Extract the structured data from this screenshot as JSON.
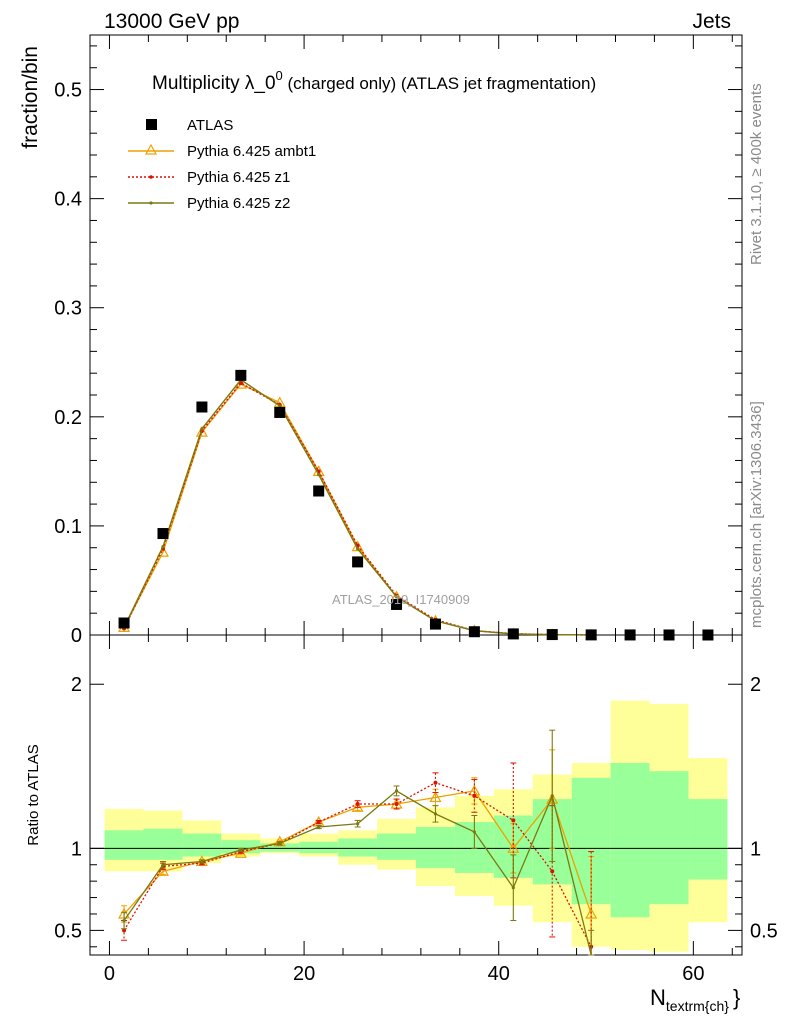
{
  "header": {
    "left": "13000 GeV pp",
    "right": "Jets"
  },
  "title": {
    "main": "Multiplicity λ_0",
    "sup": "0",
    "suffix": " (charged only) (ATLAS jet fragmentation)"
  },
  "side_labels": {
    "rivet": "Rivet 3.1.10, ≥ 400k events",
    "mcplots": "mcplots.cern.ch [arXiv:1306.3436]"
  },
  "watermark": "ATLAS_2019_I1740909",
  "colors": {
    "atlas": "#000000",
    "ambt1": "#f0a000",
    "z1": "#e01000",
    "z2": "#7a7a10",
    "band_yellow": "#ffff99",
    "band_green": "#99ff99"
  },
  "chart_data": [
    {
      "type": "scatter",
      "panel": "main",
      "ylabel": "fraction/bin",
      "xlim": [
        -2,
        65
      ],
      "ylim": [
        0,
        0.55
      ],
      "yticks": [
        0,
        0.1,
        0.2,
        0.3,
        0.4,
        0.5
      ],
      "ytick_labels": [
        "0",
        "0.1",
        "0.2",
        "0.3",
        "0.4",
        "0.5"
      ],
      "legend_position": "top-left",
      "x": [
        1.5,
        5.5,
        9.5,
        13.5,
        17.5,
        21.5,
        25.5,
        29.5,
        33.5,
        37.5,
        41.5,
        45.5,
        49.5,
        53.5,
        57.5,
        61.5
      ],
      "series": [
        {
          "name": "ATLAS",
          "style": "square",
          "values": [
            0.011,
            0.093,
            0.209,
            0.238,
            0.204,
            0.132,
            0.067,
            0.028,
            0.01,
            0.003,
            0.001,
            0.0004,
            0.0001,
            5e-05,
            2e-05,
            1e-05
          ]
        },
        {
          "name": "Pythia 6.425 ambt1",
          "style": "triangle",
          "values": [
            0.007,
            0.076,
            0.186,
            0.23,
            0.213,
            0.15,
            0.081,
            0.035,
            0.013,
            0.004,
            0.0011,
            0.0003,
            6e-05
          ]
        },
        {
          "name": "Pythia 6.425 z1",
          "style": "dot",
          "values": [
            0.006,
            0.079,
            0.187,
            0.231,
            0.211,
            0.15,
            0.082,
            0.036,
            0.014,
            0.004,
            0.0012,
            0.0003,
            6e-05
          ]
        },
        {
          "name": "Pythia 6.425 z2",
          "style": "line",
          "values": [
            0.007,
            0.081,
            0.189,
            0.234,
            0.21,
            0.147,
            0.079,
            0.035,
            0.013,
            0.004,
            0.0009,
            0.0003,
            3e-05
          ]
        }
      ]
    },
    {
      "type": "line",
      "panel": "ratio",
      "ylabel": "Ratio to ATLAS",
      "xlabel": "N",
      "xlabel_sub": "textrm{ch}",
      "xlim": [
        -2,
        65
      ],
      "ylim": [
        0.35,
        2.3
      ],
      "yticks": [
        0.5,
        1,
        2
      ],
      "ytick_labels": [
        "0.5",
        "1",
        "2"
      ],
      "xticks": [
        0,
        20,
        40,
        60
      ],
      "xtick_labels": [
        "0",
        "20",
        "40",
        "60"
      ],
      "band_edges": [
        -0.5,
        3.5,
        7.5,
        11.5,
        15.5,
        19.5,
        23.5,
        27.5,
        31.5,
        35.5,
        39.5,
        43.5,
        47.5,
        51.5,
        55.5,
        59.5,
        63.5
      ],
      "band_yellow": {
        "low": [
          0.86,
          0.86,
          0.91,
          0.95,
          0.97,
          0.95,
          0.9,
          0.87,
          0.77,
          0.71,
          0.65,
          0.55,
          0.4,
          0.38,
          0.37,
          0.55
        ],
        "high": [
          1.24,
          1.23,
          1.17,
          1.09,
          1.06,
          1.09,
          1.11,
          1.18,
          1.25,
          1.32,
          1.36,
          1.45,
          1.52,
          1.9,
          1.88,
          1.55
        ]
      },
      "band_green": {
        "low": [
          0.93,
          0.93,
          0.95,
          0.97,
          0.98,
          0.97,
          0.95,
          0.93,
          0.88,
          0.85,
          0.82,
          0.78,
          0.66,
          0.58,
          0.66,
          0.81
        ],
        "high": [
          1.11,
          1.12,
          1.09,
          1.05,
          1.03,
          1.04,
          1.06,
          1.09,
          1.13,
          1.16,
          1.2,
          1.3,
          1.43,
          1.52,
          1.47,
          1.3
        ]
      },
      "series": [
        {
          "name": "Pythia 6.425 ambt1",
          "values": [
            0.6,
            0.86,
            0.92,
            0.97,
            1.04,
            1.16,
            1.25,
            1.27,
            1.31,
            1.35,
            1.0,
            1.3,
            0.6
          ],
          "err": [
            0.05,
            0.02,
            0.01,
            0.01,
            0.01,
            0.01,
            0.02,
            0.03,
            0.05,
            0.08,
            0.15,
            0.3,
            0.35
          ]
        },
        {
          "name": "Pythia 6.425 z1",
          "values": [
            0.5,
            0.89,
            0.91,
            0.98,
            1.03,
            1.16,
            1.27,
            1.27,
            1.4,
            1.32,
            1.17,
            0.86,
            0.4
          ],
          "err": [
            0.06,
            0.02,
            0.01,
            0.01,
            0.01,
            0.01,
            0.02,
            0.03,
            0.06,
            0.1,
            0.35,
            0.4,
            0.58
          ]
        },
        {
          "name": "Pythia 6.425 z2",
          "values": [
            0.56,
            0.9,
            0.92,
            0.99,
            1.03,
            1.13,
            1.15,
            1.35,
            1.21,
            1.1,
            0.76,
            1.32,
            0.2
          ],
          "err": [
            0.05,
            0.02,
            0.01,
            0.01,
            0.01,
            0.01,
            0.02,
            0.03,
            0.05,
            0.1,
            0.2,
            0.4,
            0.3
          ]
        }
      ]
    }
  ]
}
